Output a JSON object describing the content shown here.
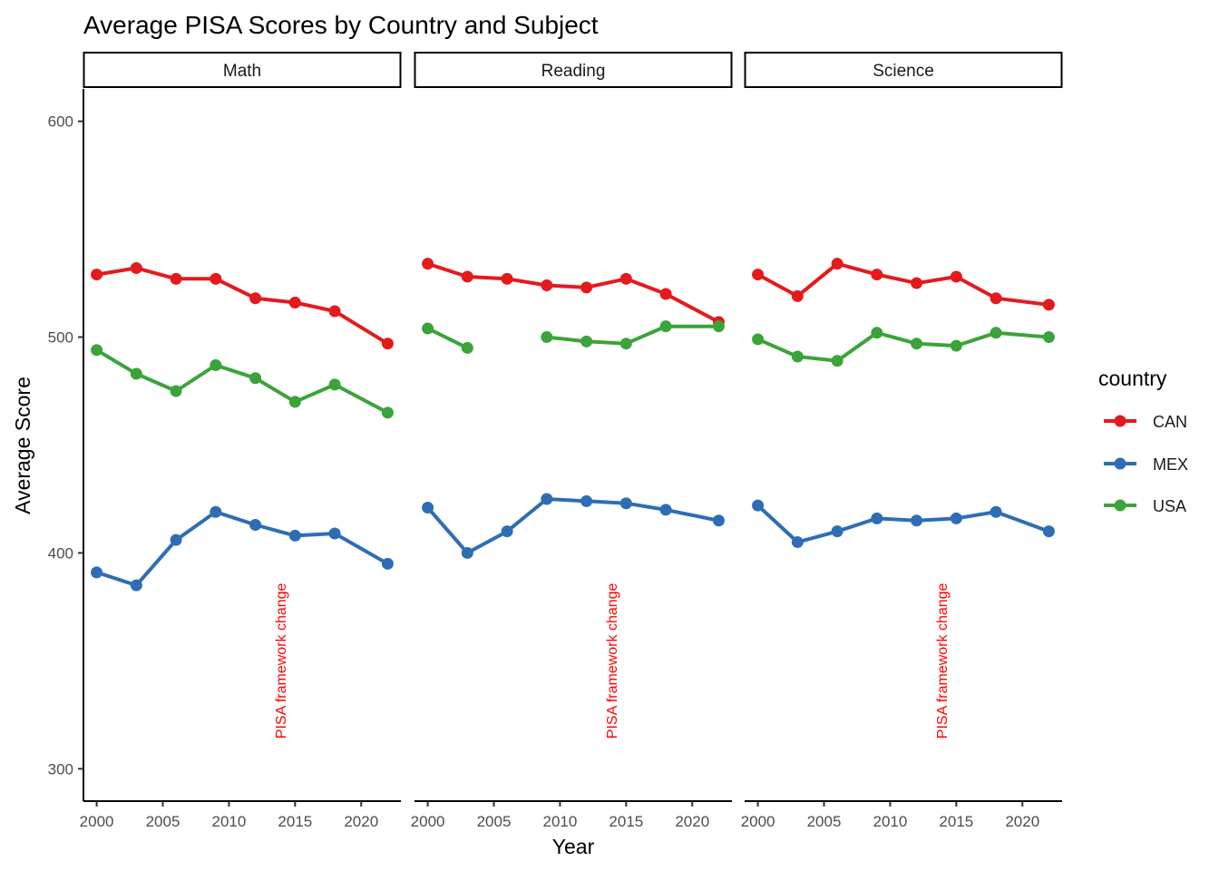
{
  "chart_data": {
    "type": "line",
    "title": "Average PISA Scores by Country and Subject",
    "xlabel": "Year",
    "ylabel": "Average Score",
    "xlim": [
      1999,
      2023
    ],
    "ylim": [
      285,
      615
    ],
    "x_ticks": [
      2000,
      2005,
      2010,
      2015,
      2020
    ],
    "y_ticks": [
      300,
      400,
      500,
      600
    ],
    "grid": false,
    "legend": {
      "title": "country",
      "position": "right",
      "entries": [
        "CAN",
        "MEX",
        "USA"
      ]
    },
    "colors": {
      "CAN": "#E41A1C",
      "MEX": "#2E6DB4",
      "USA": "#3BA33A",
      "annotation": "#FF0000"
    },
    "facets": [
      {
        "label": "Math",
        "annotation": {
          "text": "PISA framework change",
          "x": 2014,
          "y": 350
        },
        "series": [
          {
            "name": "CAN",
            "segments": [
              {
                "x": [
                  2000,
                  2003,
                  2006,
                  2009,
                  2012,
                  2015,
                  2018,
                  2022
                ],
                "y": [
                  529,
                  532,
                  527,
                  527,
                  518,
                  516,
                  512,
                  497
                ]
              }
            ]
          },
          {
            "name": "MEX",
            "segments": [
              {
                "x": [
                  2000,
                  2003,
                  2006,
                  2009,
                  2012,
                  2015,
                  2018,
                  2022
                ],
                "y": [
                  391,
                  385,
                  406,
                  419,
                  413,
                  408,
                  409,
                  395
                ]
              }
            ]
          },
          {
            "name": "USA",
            "segments": [
              {
                "x": [
                  2000,
                  2003,
                  2006,
                  2009,
                  2012,
                  2015,
                  2018,
                  2022
                ],
                "y": [
                  494,
                  483,
                  475,
                  487,
                  481,
                  470,
                  478,
                  465
                ]
              }
            ]
          }
        ]
      },
      {
        "label": "Reading",
        "annotation": {
          "text": "PISA framework change",
          "x": 2014,
          "y": 350
        },
        "series": [
          {
            "name": "CAN",
            "segments": [
              {
                "x": [
                  2000,
                  2003,
                  2006,
                  2009,
                  2012,
                  2015,
                  2018,
                  2022
                ],
                "y": [
                  534,
                  528,
                  527,
                  524,
                  523,
                  527,
                  520,
                  507
                ]
              }
            ]
          },
          {
            "name": "MEX",
            "segments": [
              {
                "x": [
                  2000,
                  2003,
                  2006,
                  2009,
                  2012,
                  2015,
                  2018,
                  2022
                ],
                "y": [
                  421,
                  400,
                  410,
                  425,
                  424,
                  423,
                  420,
                  415
                ]
              }
            ]
          },
          {
            "name": "USA",
            "segments": [
              {
                "x": [
                  2000,
                  2003
                ],
                "y": [
                  504,
                  495
                ]
              },
              {
                "x": [
                  2009,
                  2012,
                  2015,
                  2018,
                  2022
                ],
                "y": [
                  500,
                  498,
                  497,
                  505,
                  505
                ]
              }
            ]
          }
        ]
      },
      {
        "label": "Science",
        "annotation": {
          "text": "PISA framework change",
          "x": 2014,
          "y": 350
        },
        "series": [
          {
            "name": "CAN",
            "segments": [
              {
                "x": [
                  2000,
                  2003,
                  2006,
                  2009,
                  2012,
                  2015,
                  2018,
                  2022
                ],
                "y": [
                  529,
                  519,
                  534,
                  529,
                  525,
                  528,
                  518,
                  515
                ]
              }
            ]
          },
          {
            "name": "MEX",
            "segments": [
              {
                "x": [
                  2000,
                  2003,
                  2006,
                  2009,
                  2012,
                  2015,
                  2018,
                  2022
                ],
                "y": [
                  422,
                  405,
                  410,
                  416,
                  415,
                  416,
                  419,
                  410
                ]
              }
            ]
          },
          {
            "name": "USA",
            "segments": [
              {
                "x": [
                  2000,
                  2003,
                  2006,
                  2009,
                  2012,
                  2015,
                  2018,
                  2022
                ],
                "y": [
                  499,
                  491,
                  489,
                  502,
                  497,
                  496,
                  502,
                  500
                ]
              }
            ]
          }
        ]
      }
    ]
  }
}
